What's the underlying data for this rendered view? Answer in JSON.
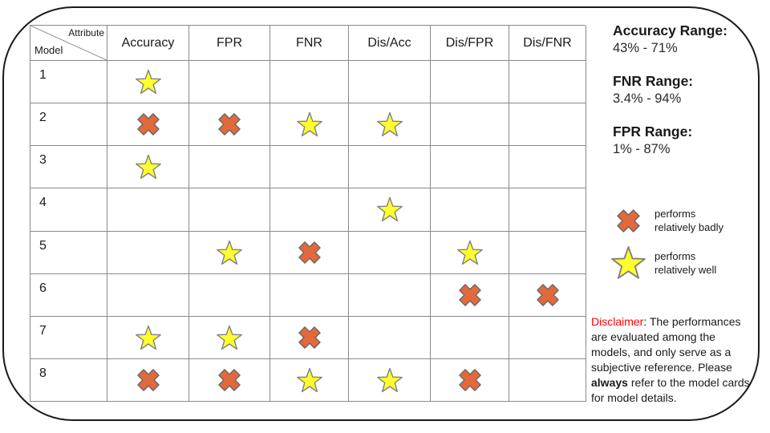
{
  "chart_data": {
    "type": "table",
    "corner": {
      "top_label": "Attribute",
      "bottom_label": "Model"
    },
    "columns": [
      "Accuracy",
      "FPR",
      "FNR",
      "Dis/Acc",
      "Dis/FPR",
      "Dis/FNR"
    ],
    "rows": [
      {
        "model": "1",
        "marks": [
          "good",
          "",
          "",
          "",
          "",
          ""
        ]
      },
      {
        "model": "2",
        "marks": [
          "bad",
          "bad",
          "good",
          "good",
          "",
          ""
        ]
      },
      {
        "model": "3",
        "marks": [
          "good",
          "",
          "",
          "",
          "",
          ""
        ]
      },
      {
        "model": "4",
        "marks": [
          "",
          "",
          "",
          "good",
          "",
          ""
        ]
      },
      {
        "model": "5",
        "marks": [
          "",
          "good",
          "bad",
          "",
          "good",
          ""
        ]
      },
      {
        "model": "6",
        "marks": [
          "",
          "",
          "",
          "",
          "bad",
          "bad"
        ]
      },
      {
        "model": "7",
        "marks": [
          "good",
          "good",
          "bad",
          "",
          "",
          ""
        ]
      },
      {
        "model": "8",
        "marks": [
          "bad",
          "bad",
          "good",
          "good",
          "bad",
          ""
        ]
      }
    ],
    "mark_legend": {
      "good": "performs relatively well",
      "bad": "performs relatively badly"
    }
  },
  "ranges": [
    {
      "label": "Accuracy Range:",
      "value": "43% - 71%"
    },
    {
      "label": "FNR Range:",
      "value": "3.4% - 94%"
    },
    {
      "label": "FPR Range:",
      "value": "1% - 87%"
    }
  ],
  "legend": [
    {
      "type": "bad",
      "line1": "performs",
      "line2": "relatively badly"
    },
    {
      "type": "good",
      "line1": "performs",
      "line2": "relatively well"
    }
  ],
  "disclaimer": {
    "label": "Disclaimer",
    "text_before": ": The performances are evaluated among the models, and only serve as a subjective reference. Please ",
    "bold_word": "always",
    "text_after": " refer to the model cards for model details."
  },
  "colors": {
    "star_fill": "#FFFF2E",
    "star_stroke": "#7f7f7f",
    "cross_fill": "#E2693C",
    "cross_stroke": "#666666",
    "grid_line": "#8a8a8a",
    "disclaimer_red": "#ff0000"
  }
}
